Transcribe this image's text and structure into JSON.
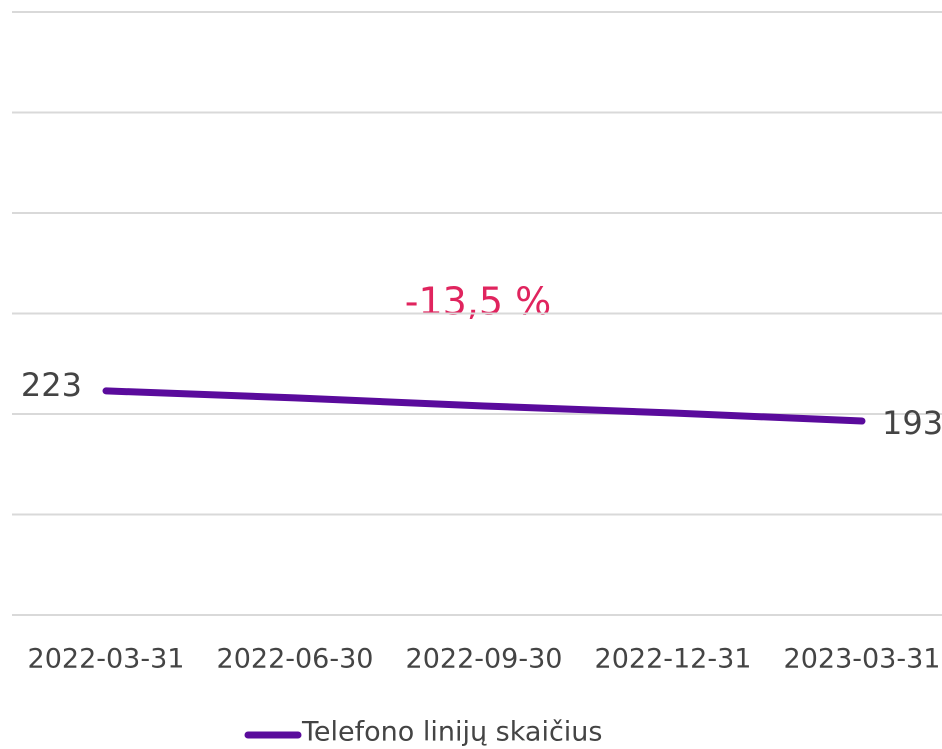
{
  "chart_data": {
    "type": "line",
    "annotation": "-13,5 %",
    "categories": [
      "2022-03-31",
      "2022-06-30",
      "2022-09-30",
      "2022-12-31",
      "2023-03-31"
    ],
    "series": [
      {
        "name": "Telefono linijų skaičius",
        "color": "#5a0b9c",
        "values": [
          223,
          216,
          208,
          201,
          193
        ]
      }
    ],
    "ylim": [
      0,
      600
    ],
    "yticks": [
      0,
      100,
      200,
      300,
      400,
      500,
      600
    ],
    "grid": true,
    "annotation_color": "#e0245e"
  }
}
